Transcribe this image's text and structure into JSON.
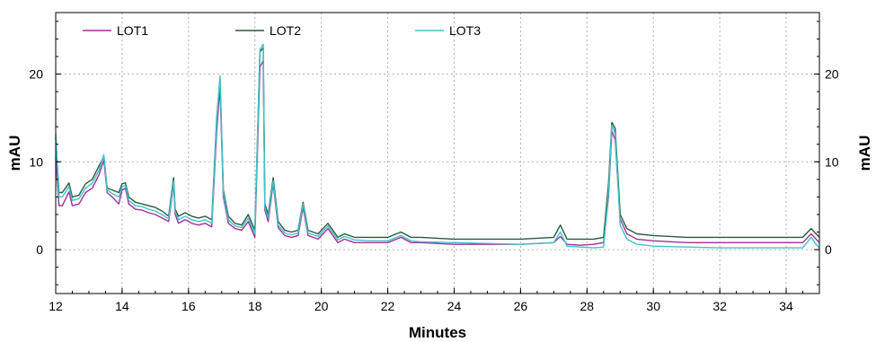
{
  "chart_data": {
    "type": "line",
    "xlabel": "Minutes",
    "ylabel": "mAU",
    "ylabel_right": "mAU",
    "xlim": [
      12,
      35
    ],
    "ylim": [
      -5,
      27
    ],
    "x_ticks": [
      12,
      14,
      16,
      18,
      20,
      22,
      24,
      26,
      28,
      30,
      32,
      34
    ],
    "y_ticks": [
      0,
      10,
      20
    ],
    "grid": true,
    "legend_position": "top",
    "series": [
      {
        "name": "LOT1",
        "color": "#a0309a",
        "x": [
          12.0,
          12.1,
          12.2,
          12.4,
          12.5,
          12.7,
          12.9,
          13.1,
          13.3,
          13.45,
          13.55,
          13.7,
          13.9,
          14.0,
          14.1,
          14.2,
          14.4,
          14.6,
          14.8,
          15.0,
          15.2,
          15.4,
          15.55,
          15.6,
          15.7,
          15.9,
          16.1,
          16.3,
          16.5,
          16.7,
          16.85,
          16.95,
          17.05,
          17.2,
          17.4,
          17.6,
          17.8,
          18.0,
          18.15,
          18.25,
          18.3,
          18.4,
          18.55,
          18.7,
          18.9,
          19.1,
          19.3,
          19.45,
          19.6,
          19.9,
          20.2,
          20.5,
          20.7,
          21.0,
          21.5,
          22.0,
          22.4,
          22.7,
          23.0,
          24.0,
          25.0,
          26.0,
          27.0,
          27.2,
          27.4,
          27.8,
          28.2,
          28.5,
          28.65,
          28.75,
          28.85,
          29.0,
          29.2,
          29.5,
          30.0,
          31.0,
          32.0,
          33.0,
          34.0,
          34.5,
          34.75,
          34.9,
          35.0
        ],
        "values": [
          10.5,
          5.0,
          5.0,
          6.6,
          5.0,
          5.2,
          6.5,
          7.0,
          8.5,
          10.2,
          6.5,
          6.0,
          5.2,
          6.8,
          7.0,
          5.2,
          4.6,
          4.5,
          4.2,
          4.0,
          3.6,
          3.2,
          7.5,
          4.0,
          3.0,
          3.4,
          3.0,
          2.8,
          3.0,
          2.6,
          13.5,
          18.5,
          6.0,
          3.0,
          2.4,
          2.2,
          3.2,
          1.4,
          20.8,
          21.5,
          4.5,
          3.2,
          7.5,
          2.5,
          1.6,
          1.4,
          1.6,
          4.8,
          1.6,
          1.2,
          2.4,
          0.8,
          1.2,
          0.8,
          0.8,
          0.8,
          1.4,
          0.8,
          0.8,
          0.6,
          0.6,
          0.6,
          0.8,
          1.5,
          0.6,
          0.5,
          0.6,
          0.8,
          6.0,
          13.5,
          12.5,
          3.5,
          1.8,
          1.2,
          1.0,
          0.8,
          0.8,
          0.8,
          0.8,
          0.8,
          1.8,
          1.2,
          0.8
        ]
      },
      {
        "name": "LOT2",
        "color": "#2a5a3a",
        "x": [
          12.0,
          12.1,
          12.2,
          12.4,
          12.5,
          12.7,
          12.9,
          13.1,
          13.3,
          13.45,
          13.55,
          13.7,
          13.9,
          14.0,
          14.1,
          14.2,
          14.4,
          14.6,
          14.8,
          15.0,
          15.2,
          15.4,
          15.55,
          15.6,
          15.7,
          15.9,
          16.1,
          16.3,
          16.5,
          16.7,
          16.85,
          16.95,
          17.05,
          17.2,
          17.4,
          17.6,
          17.8,
          18.0,
          18.15,
          18.25,
          18.3,
          18.4,
          18.55,
          18.7,
          18.9,
          19.1,
          19.3,
          19.45,
          19.6,
          19.9,
          20.2,
          20.5,
          20.7,
          21.0,
          21.5,
          22.0,
          22.4,
          22.7,
          23.0,
          24.0,
          25.0,
          26.0,
          27.0,
          27.2,
          27.4,
          27.8,
          28.2,
          28.5,
          28.65,
          28.75,
          28.85,
          29.0,
          29.2,
          29.5,
          30.0,
          31.0,
          32.0,
          33.0,
          34.0,
          34.5,
          34.75,
          34.9,
          35.0
        ],
        "values": [
          12.8,
          6.5,
          6.5,
          7.6,
          6.0,
          6.2,
          7.5,
          8.0,
          9.5,
          10.6,
          7.0,
          6.8,
          6.5,
          7.5,
          7.6,
          6.0,
          5.4,
          5.2,
          5.0,
          4.8,
          4.4,
          3.8,
          8.2,
          4.6,
          3.8,
          4.2,
          3.8,
          3.6,
          3.8,
          3.4,
          15.0,
          19.5,
          6.8,
          3.8,
          3.0,
          2.8,
          4.0,
          2.2,
          22.5,
          23.0,
          5.2,
          4.0,
          8.2,
          3.2,
          2.2,
          2.0,
          2.2,
          5.4,
          2.2,
          1.8,
          3.0,
          1.4,
          1.8,
          1.4,
          1.4,
          1.4,
          2.0,
          1.4,
          1.4,
          1.2,
          1.2,
          1.2,
          1.4,
          2.8,
          1.2,
          1.2,
          1.2,
          1.4,
          7.5,
          14.5,
          13.8,
          4.0,
          2.4,
          1.8,
          1.6,
          1.4,
          1.4,
          1.4,
          1.4,
          1.4,
          2.4,
          1.8,
          1.4
        ]
      },
      {
        "name": "LOT3",
        "color": "#3cc4cc",
        "x": [
          12.0,
          12.1,
          12.2,
          12.4,
          12.5,
          12.7,
          12.9,
          13.1,
          13.3,
          13.45,
          13.55,
          13.7,
          13.9,
          14.0,
          14.1,
          14.2,
          14.4,
          14.6,
          14.8,
          15.0,
          15.2,
          15.4,
          15.55,
          15.6,
          15.7,
          15.9,
          16.1,
          16.3,
          16.5,
          16.7,
          16.85,
          16.95,
          17.05,
          17.2,
          17.4,
          17.6,
          17.8,
          18.0,
          18.15,
          18.25,
          18.3,
          18.4,
          18.55,
          18.7,
          18.9,
          19.1,
          19.3,
          19.45,
          19.6,
          19.9,
          20.2,
          20.5,
          20.7,
          21.0,
          21.5,
          22.0,
          22.4,
          22.7,
          23.0,
          24.0,
          25.0,
          26.0,
          27.0,
          27.2,
          27.4,
          27.8,
          28.2,
          28.5,
          28.65,
          28.75,
          28.85,
          29.0,
          29.2,
          29.5,
          30.0,
          31.0,
          32.0,
          33.0,
          34.0,
          34.5,
          34.75,
          34.9,
          35.0
        ],
        "values": [
          13.2,
          6.0,
          6.0,
          7.2,
          5.6,
          5.8,
          7.0,
          7.6,
          9.0,
          10.8,
          6.8,
          6.4,
          6.0,
          7.2,
          7.3,
          5.6,
          5.0,
          4.9,
          4.6,
          4.4,
          4.0,
          3.5,
          7.8,
          4.3,
          3.4,
          3.8,
          3.4,
          3.2,
          3.4,
          3.0,
          14.5,
          19.8,
          6.4,
          3.4,
          2.7,
          2.5,
          3.6,
          1.8,
          22.8,
          23.4,
          4.8,
          3.6,
          7.8,
          2.8,
          1.9,
          1.7,
          1.9,
          5.2,
          1.9,
          1.5,
          2.7,
          1.1,
          1.5,
          1.1,
          1.0,
          1.0,
          1.6,
          1.0,
          0.9,
          0.8,
          0.7,
          0.6,
          0.8,
          2.0,
          0.4,
          0.3,
          0.2,
          0.3,
          6.5,
          14.2,
          13.2,
          2.8,
          1.2,
          0.6,
          0.4,
          0.3,
          0.2,
          0.2,
          0.2,
          0.2,
          1.4,
          0.6,
          0.2
        ]
      }
    ]
  }
}
